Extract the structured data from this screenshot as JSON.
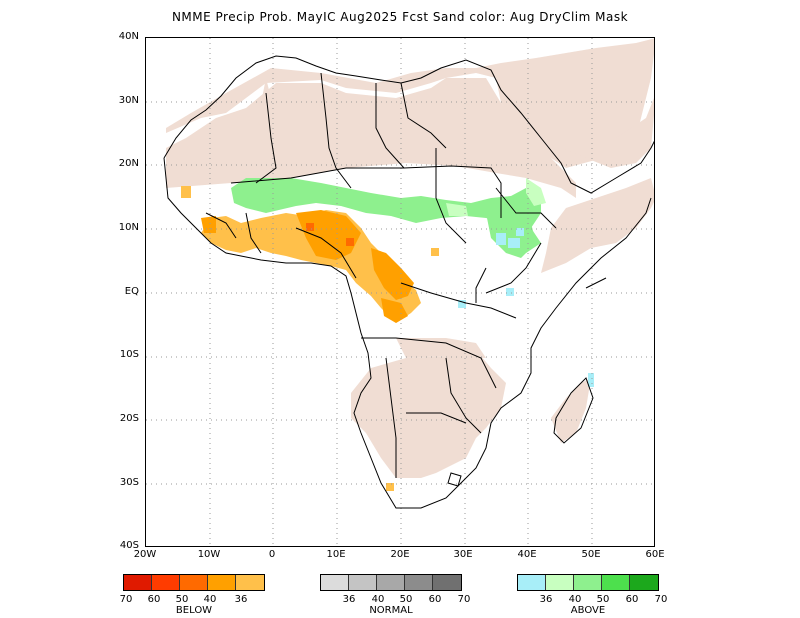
{
  "title": "NMME Precip Prob. MayIC   Aug2025 Fcst   Sand color: Aug DryClim Mask",
  "y_axis_labels": [
    "40N",
    "30N",
    "20N",
    "10N",
    "EQ",
    "10S",
    "20S",
    "30S",
    "40S"
  ],
  "x_axis_labels": [
    "20W",
    "10W",
    "0",
    "10E",
    "20E",
    "30E",
    "40E",
    "50E",
    "60E"
  ],
  "colors": {
    "dry_mask": "#f0ddd3",
    "below_36": "#ffc04a",
    "below_40": "#ffa000",
    "below_50": "#ff6a00",
    "above_36": "#a8eef8",
    "above_40": "#c8ffc0",
    "above_50": "#8ef08e",
    "grid": "#9a9a9a",
    "coast": "#000000"
  },
  "legend": {
    "below": {
      "caption": "BELOW",
      "colors": [
        "#e01a00",
        "#ff3c00",
        "#ff6a00",
        "#ffa000",
        "#ffc04a"
      ],
      "ticks": [
        "70",
        "60",
        "50",
        "40",
        "36"
      ]
    },
    "normal": {
      "caption": "NORMAL",
      "colors": [
        "#dcdcdc",
        "#c4c4c4",
        "#a8a8a8",
        "#8c8c8c",
        "#707070"
      ],
      "ticks": [
        "36",
        "40",
        "50",
        "60",
        "70"
      ]
    },
    "above": {
      "caption": "ABOVE",
      "colors": [
        "#a8eef8",
        "#c8ffc0",
        "#8ef08e",
        "#4de04d",
        "#1ca81c"
      ],
      "ticks": [
        "36",
        "40",
        "50",
        "60",
        "70"
      ]
    }
  }
}
